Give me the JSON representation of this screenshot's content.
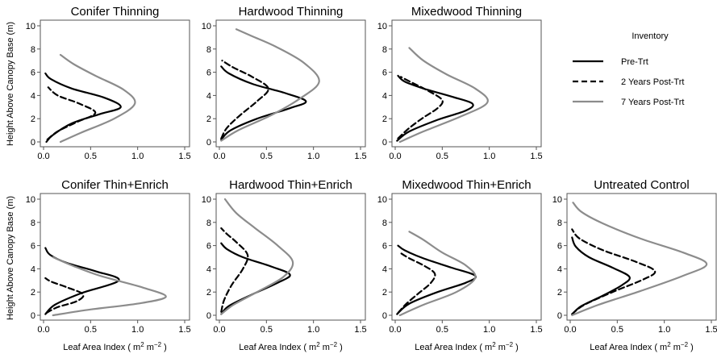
{
  "figure": {
    "ylabel": "Height Above Canopy Base (m)",
    "xlabel_main": "Leaf Area Index",
    "xlabel_unit": "( m",
    "xlabel_sup1": "2",
    "xlabel_mid": " m",
    "xlabel_sup2": "−2",
    "xlabel_close": " )"
  },
  "legend": {
    "title": "Inventory",
    "items": [
      {
        "label": "Pre-Trt",
        "color": "#000000",
        "dash": "solid"
      },
      {
        "label": "2 Years Post-Trt",
        "color": "#000000",
        "dash": "dashed"
      },
      {
        "label": "7 Years Post-Trt",
        "color": "#8c8c8c",
        "dash": "solid"
      }
    ]
  },
  "chart_data": [
    {
      "type": "line",
      "title": "Conifer Thinning",
      "xlabel": "",
      "ylabel": "Height Above Canopy Base (m)",
      "xlim": [
        0,
        1.5
      ],
      "ylim": [
        0,
        10
      ],
      "xticks": [
        "0.0",
        "0.5",
        "1.0",
        "1.5"
      ],
      "yticks": [
        "0",
        "2",
        "4",
        "6",
        "8",
        "10"
      ],
      "series": [
        {
          "name": "Pre-Trt",
          "points": [
            [
              0.03,
              0
            ],
            [
              0.1,
              0.6
            ],
            [
              0.3,
              1.6
            ],
            [
              0.6,
              2.4
            ],
            [
              0.82,
              3.0
            ],
            [
              0.65,
              3.8
            ],
            [
              0.3,
              4.6
            ],
            [
              0.08,
              5.4
            ],
            [
              0.02,
              5.9
            ]
          ]
        },
        {
          "name": "2 Years Post-Trt",
          "points": [
            [
              0.04,
              0.2
            ],
            [
              0.15,
              0.9
            ],
            [
              0.35,
              1.7
            ],
            [
              0.55,
              2.5
            ],
            [
              0.38,
              3.3
            ],
            [
              0.15,
              4.0
            ],
            [
              0.05,
              4.7
            ]
          ]
        },
        {
          "name": "7 Years Post-Trt",
          "points": [
            [
              0.18,
              0
            ],
            [
              0.4,
              0.8
            ],
            [
              0.75,
              2.0
            ],
            [
              0.97,
              3.3
            ],
            [
              0.85,
              4.5
            ],
            [
              0.55,
              5.7
            ],
            [
              0.32,
              6.7
            ],
            [
              0.18,
              7.5
            ]
          ]
        }
      ]
    },
    {
      "type": "line",
      "title": "Hardwood Thinning",
      "xlabel": "",
      "ylabel": "",
      "xlim": [
        0,
        1.5
      ],
      "ylim": [
        0,
        10
      ],
      "xticks": [
        "0.0",
        "0.5",
        "1.0",
        "1.5"
      ],
      "yticks": [
        "0",
        "2",
        "4",
        "6",
        "8",
        "10"
      ],
      "series": [
        {
          "name": "Pre-Trt",
          "points": [
            [
              0.02,
              0.2
            ],
            [
              0.12,
              1.0
            ],
            [
              0.4,
              2.0
            ],
            [
              0.75,
              2.9
            ],
            [
              0.92,
              3.5
            ],
            [
              0.7,
              4.2
            ],
            [
              0.35,
              5.0
            ],
            [
              0.1,
              5.9
            ],
            [
              0.02,
              6.5
            ]
          ]
        },
        {
          "name": "2 Years Post-Trt",
          "points": [
            [
              0.02,
              0.3
            ],
            [
              0.08,
              1.2
            ],
            [
              0.22,
              2.3
            ],
            [
              0.4,
              3.5
            ],
            [
              0.52,
              4.6
            ],
            [
              0.35,
              5.6
            ],
            [
              0.15,
              6.4
            ],
            [
              0.03,
              7.0
            ]
          ]
        },
        {
          "name": "7 Years Post-Trt",
          "points": [
            [
              0.02,
              0.1
            ],
            [
              0.2,
              1.0
            ],
            [
              0.55,
              2.3
            ],
            [
              0.85,
              3.7
            ],
            [
              1.06,
              5.2
            ],
            [
              0.9,
              6.8
            ],
            [
              0.6,
              8.2
            ],
            [
              0.35,
              9.1
            ],
            [
              0.18,
              9.7
            ]
          ]
        }
      ]
    },
    {
      "type": "line",
      "title": "Mixedwood Thinning",
      "xlabel": "",
      "ylabel": "",
      "xlim": [
        0,
        1.5
      ],
      "ylim": [
        0,
        10
      ],
      "xticks": [
        "0.0",
        "0.5",
        "1.0",
        "1.5"
      ],
      "yticks": [
        "0",
        "2",
        "4",
        "6",
        "8",
        "10"
      ],
      "series": [
        {
          "name": "Pre-Trt",
          "points": [
            [
              0.02,
              0.1
            ],
            [
              0.15,
              0.9
            ],
            [
              0.45,
              1.9
            ],
            [
              0.75,
              2.7
            ],
            [
              0.82,
              3.3
            ],
            [
              0.6,
              3.9
            ],
            [
              0.3,
              4.6
            ],
            [
              0.1,
              5.2
            ],
            [
              0.03,
              5.7
            ]
          ]
        },
        {
          "name": "2 Years Post-Trt",
          "points": [
            [
              0.03,
              0.3
            ],
            [
              0.15,
              1.2
            ],
            [
              0.3,
              2.1
            ],
            [
              0.45,
              2.9
            ],
            [
              0.5,
              3.6
            ],
            [
              0.35,
              4.4
            ],
            [
              0.18,
              5.1
            ],
            [
              0.06,
              5.6
            ]
          ]
        },
        {
          "name": "7 Years Post-Trt",
          "points": [
            [
              0.05,
              0
            ],
            [
              0.3,
              0.9
            ],
            [
              0.7,
              2.2
            ],
            [
              0.98,
              3.4
            ],
            [
              0.85,
              4.6
            ],
            [
              0.55,
              5.8
            ],
            [
              0.3,
              7.0
            ],
            [
              0.15,
              8.1
            ]
          ]
        }
      ]
    },
    {
      "type": "line",
      "title": "Conifer Thin+Enrich",
      "xlabel": "Leaf Area Index",
      "ylabel": "Height Above Canopy Base (m)",
      "xlim": [
        0,
        1.5
      ],
      "ylim": [
        0,
        10
      ],
      "xticks": [
        "0.0",
        "0.5",
        "1.0",
        "1.5"
      ],
      "yticks": [
        "0",
        "2",
        "4",
        "6",
        "8",
        "10"
      ],
      "series": [
        {
          "name": "Pre-Trt",
          "points": [
            [
              0.02,
              0.1
            ],
            [
              0.12,
              0.9
            ],
            [
              0.4,
              1.9
            ],
            [
              0.8,
              3.0
            ],
            [
              0.55,
              3.8
            ],
            [
              0.25,
              4.5
            ],
            [
              0.07,
              5.2
            ],
            [
              0.02,
              5.8
            ]
          ]
        },
        {
          "name": "2 Years Post-Trt",
          "points": [
            [
              0.03,
              0.2
            ],
            [
              0.15,
              0.7
            ],
            [
              0.35,
              1.2
            ],
            [
              0.42,
              1.8
            ],
            [
              0.25,
              2.4
            ],
            [
              0.08,
              2.9
            ],
            [
              0.02,
              3.2
            ]
          ]
        },
        {
          "name": "7 Years Post-Trt",
          "points": [
            [
              0.1,
              0
            ],
            [
              0.5,
              0.5
            ],
            [
              1.0,
              1.0
            ],
            [
              1.3,
              1.6
            ],
            [
              1.05,
              2.4
            ],
            [
              0.6,
              3.4
            ],
            [
              0.3,
              4.3
            ],
            [
              0.1,
              5.0
            ]
          ]
        }
      ]
    },
    {
      "type": "line",
      "title": "Hardwood Thin+Enrich",
      "xlabel": "Leaf Area Index",
      "ylabel": "",
      "xlim": [
        0,
        1.5
      ],
      "ylim": [
        0,
        10
      ],
      "xticks": [
        "0.0",
        "0.5",
        "1.0",
        "1.5"
      ],
      "yticks": [
        "0",
        "2",
        "4",
        "6",
        "8",
        "10"
      ],
      "series": [
        {
          "name": "Pre-Trt",
          "points": [
            [
              0.02,
              0.1
            ],
            [
              0.1,
              0.8
            ],
            [
              0.35,
              1.8
            ],
            [
              0.62,
              2.8
            ],
            [
              0.75,
              3.5
            ],
            [
              0.55,
              4.2
            ],
            [
              0.25,
              5.0
            ],
            [
              0.08,
              5.7
            ],
            [
              0.02,
              6.2
            ]
          ]
        },
        {
          "name": "2 Years Post-Trt",
          "points": [
            [
              0.02,
              0.3
            ],
            [
              0.05,
              1.3
            ],
            [
              0.13,
              2.6
            ],
            [
              0.25,
              4.0
            ],
            [
              0.3,
              5.2
            ],
            [
              0.18,
              6.3
            ],
            [
              0.08,
              7.0
            ],
            [
              0.02,
              7.5
            ]
          ]
        },
        {
          "name": "7 Years Post-Trt",
          "points": [
            [
              0.02,
              0.1
            ],
            [
              0.15,
              0.9
            ],
            [
              0.4,
              2.0
            ],
            [
              0.68,
              3.3
            ],
            [
              0.78,
              4.6
            ],
            [
              0.62,
              6.0
            ],
            [
              0.38,
              7.5
            ],
            [
              0.18,
              8.8
            ],
            [
              0.06,
              10.0
            ]
          ]
        }
      ]
    },
    {
      "type": "line",
      "title": "Mixedwood Thin+Enrich",
      "xlabel": "Leaf Area Index",
      "ylabel": "",
      "xlim": [
        0,
        1.5
      ],
      "ylim": [
        0,
        10
      ],
      "xticks": [
        "0.0",
        "0.5",
        "1.0",
        "1.5"
      ],
      "yticks": [
        "0",
        "2",
        "4",
        "6",
        "8",
        "10"
      ],
      "series": [
        {
          "name": "Pre-Trt",
          "points": [
            [
              0.02,
              0.1
            ],
            [
              0.15,
              1.0
            ],
            [
              0.45,
              2.0
            ],
            [
              0.75,
              2.8
            ],
            [
              0.85,
              3.4
            ],
            [
              0.6,
              4.1
            ],
            [
              0.3,
              4.9
            ],
            [
              0.1,
              5.6
            ],
            [
              0.03,
              6.0
            ]
          ]
        },
        {
          "name": "2 Years Post-Trt",
          "points": [
            [
              0.03,
              0.2
            ],
            [
              0.12,
              1.0
            ],
            [
              0.25,
              1.9
            ],
            [
              0.38,
              2.8
            ],
            [
              0.42,
              3.6
            ],
            [
              0.3,
              4.3
            ],
            [
              0.15,
              4.9
            ],
            [
              0.05,
              5.4
            ]
          ]
        },
        {
          "name": "7 Years Post-Trt",
          "points": [
            [
              0.05,
              0
            ],
            [
              0.3,
              0.9
            ],
            [
              0.65,
              2.0
            ],
            [
              0.85,
              3.2
            ],
            [
              0.75,
              4.3
            ],
            [
              0.5,
              5.4
            ],
            [
              0.3,
              6.5
            ],
            [
              0.15,
              7.2
            ]
          ]
        }
      ]
    },
    {
      "type": "line",
      "title": "Untreated Control",
      "xlabel": "Leaf Area Index",
      "ylabel": "",
      "xlim": [
        0,
        1.5
      ],
      "ylim": [
        0,
        10
      ],
      "xticks": [
        "0.0",
        "0.5",
        "1.0",
        "1.5"
      ],
      "yticks": [
        "0",
        "2",
        "4",
        "6",
        "8",
        "10"
      ],
      "series": [
        {
          "name": "Pre-Trt",
          "points": [
            [
              0.02,
              0.1
            ],
            [
              0.12,
              0.8
            ],
            [
              0.35,
              1.7
            ],
            [
              0.55,
              2.6
            ],
            [
              0.63,
              3.3
            ],
            [
              0.45,
              4.1
            ],
            [
              0.2,
              5.0
            ],
            [
              0.06,
              5.9
            ],
            [
              0.02,
              6.7
            ]
          ]
        },
        {
          "name": "2 Years Post-Trt",
          "points": [
            [
              0.02,
              0.1
            ],
            [
              0.15,
              0.9
            ],
            [
              0.45,
              2.0
            ],
            [
              0.78,
              3.1
            ],
            [
              0.9,
              3.8
            ],
            [
              0.7,
              4.6
            ],
            [
              0.35,
              5.6
            ],
            [
              0.1,
              6.6
            ],
            [
              0.02,
              7.4
            ]
          ]
        },
        {
          "name": "7 Years Post-Trt",
          "points": [
            [
              0.02,
              0
            ],
            [
              0.3,
              0.9
            ],
            [
              0.75,
              2.1
            ],
            [
              1.2,
              3.4
            ],
            [
              1.45,
              4.4
            ],
            [
              1.2,
              5.4
            ],
            [
              0.75,
              6.6
            ],
            [
              0.35,
              7.9
            ],
            [
              0.12,
              8.9
            ],
            [
              0.03,
              9.7
            ]
          ]
        }
      ]
    }
  ]
}
